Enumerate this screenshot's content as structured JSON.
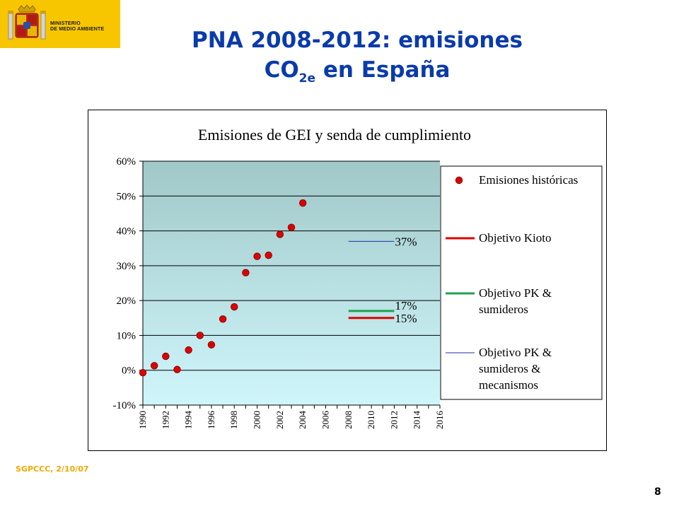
{
  "header": {
    "logo_line1": "MINISTERIO",
    "logo_line2": "DE MEDIO AMBIENTE",
    "title_line1": "PNA 2008-2012: emisiones",
    "title_line2_main": "CO",
    "title_line2_sub": "2e",
    "title_line2_rest": " en España"
  },
  "footer": {
    "note": "SGPCCC, 2/10/07",
    "page": "8"
  },
  "colors": {
    "title": "#0a3bab",
    "logo_bg": "#f7c600",
    "footer": "#f2a900",
    "points": "#e00000",
    "kyoto": "#e00000",
    "pk": "#20a050",
    "pk_mech": "#1a2ea8"
  },
  "chart_data": {
    "type": "scatter",
    "title": "Emisiones de GEI y senda de cumplimiento",
    "xlim": [
      1990,
      2016
    ],
    "ylim": [
      -10,
      60
    ],
    "x_ticks": [
      "1990",
      "1992",
      "1994",
      "1996",
      "1998",
      "2000",
      "2002",
      "2004",
      "2006",
      "2008",
      "2010",
      "2012",
      "2014",
      "2016"
    ],
    "y_ticks": [
      "60%",
      "50%",
      "40%",
      "30%",
      "20%",
      "10%",
      "0%",
      "-10%"
    ],
    "y_tick_values": [
      60,
      50,
      40,
      30,
      20,
      10,
      0,
      -10
    ],
    "series": [
      {
        "name": "Emisiones históricas",
        "x": [
          1990,
          1991,
          1992,
          1993,
          1994,
          1995,
          1996,
          1997,
          1998,
          1999,
          2000,
          2001,
          2002,
          2003,
          2004
        ],
        "y": [
          -0.7,
          1.3,
          4,
          0.2,
          5.8,
          10,
          7.3,
          14.7,
          18.2,
          28,
          32.7,
          33,
          39,
          41,
          48
        ]
      }
    ],
    "targets": [
      {
        "name": "Objetivo Kioto",
        "value": 15,
        "label": "15%",
        "x_range": [
          2008,
          2012
        ],
        "color": "#e00000"
      },
      {
        "name": "Objetivo PK & sumideros",
        "value": 17,
        "label": "17%",
        "x_range": [
          2008,
          2012
        ],
        "color": "#20a050"
      },
      {
        "name": "Objetivo PK & sumideros & mecanismos",
        "value": 37,
        "label": "37%",
        "x_range": [
          2008,
          2012
        ],
        "color": "#1a2ea8"
      }
    ],
    "legend": {
      "placement": "right",
      "items": [
        {
          "lines": [
            "Emisiones históricas"
          ],
          "kind": "marker",
          "color": "#e00000"
        },
        {
          "lines": [
            "Objetivo Kioto"
          ],
          "kind": "line",
          "color": "#e00000"
        },
        {
          "lines": [
            "Objetivo PK &",
            "sumideros"
          ],
          "kind": "line",
          "color": "#20a050"
        },
        {
          "lines": [
            "Objetivo PK &",
            "sumideros &",
            "mecanismos"
          ],
          "kind": "line",
          "color": "#1a2ea8"
        }
      ]
    },
    "grid": true
  }
}
